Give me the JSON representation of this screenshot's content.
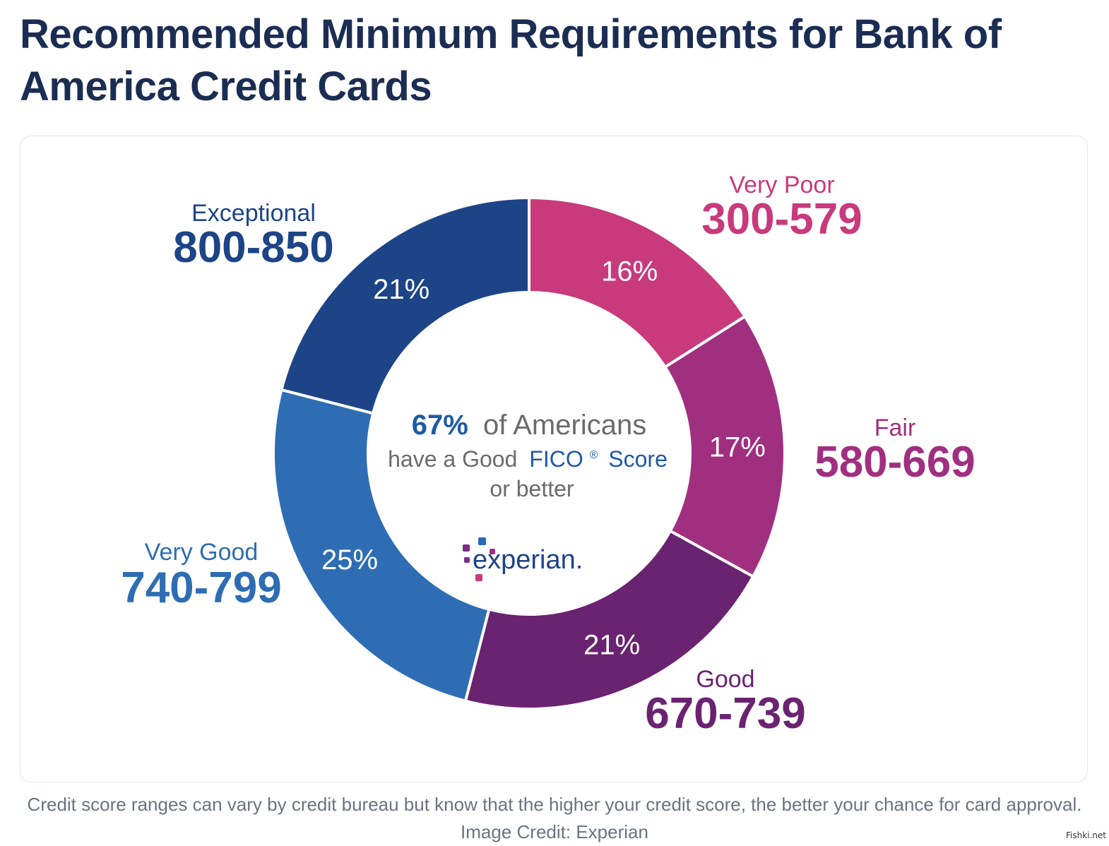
{
  "page": {
    "title": "Recommended Minimum Requirements for Bank of America Credit Cards",
    "caption": "Credit score ranges can vary by credit bureau but know that the higher your credit score, the better your chance for card approval. Image Credit: Experian",
    "watermark": "Fishki.net"
  },
  "chart_data": {
    "type": "pie",
    "donut": true,
    "segments": [
      {
        "name": "Very Poor",
        "range": "300-579",
        "value": 16,
        "label": "16%",
        "color": "#c83a7c"
      },
      {
        "name": "Fair",
        "range": "580-669",
        "value": 17,
        "label": "17%",
        "color": "#a12f80"
      },
      {
        "name": "Good",
        "range": "670-739",
        "value": 21,
        "label": "21%",
        "color": "#6a2370"
      },
      {
        "name": "Very Good",
        "range": "740-799",
        "value": 25,
        "label": "25%",
        "color": "#2e6db3"
      },
      {
        "name": "Exceptional",
        "range": "800-850",
        "value": 21,
        "label": "21%",
        "color": "#1d4487"
      }
    ],
    "center": {
      "pct": "67%",
      "line1_rest": "of Americans",
      "line2_a": "have a Good",
      "line2_b": "FICO",
      "line2_reg": "®",
      "line2_c": "Score",
      "line3": "or better",
      "logo_text": "experian."
    }
  },
  "colors": {
    "title": "#1b2d52",
    "caption": "#6b7280",
    "center_text": "#6b6b6b",
    "center_highlight": "#1d5aa8"
  }
}
